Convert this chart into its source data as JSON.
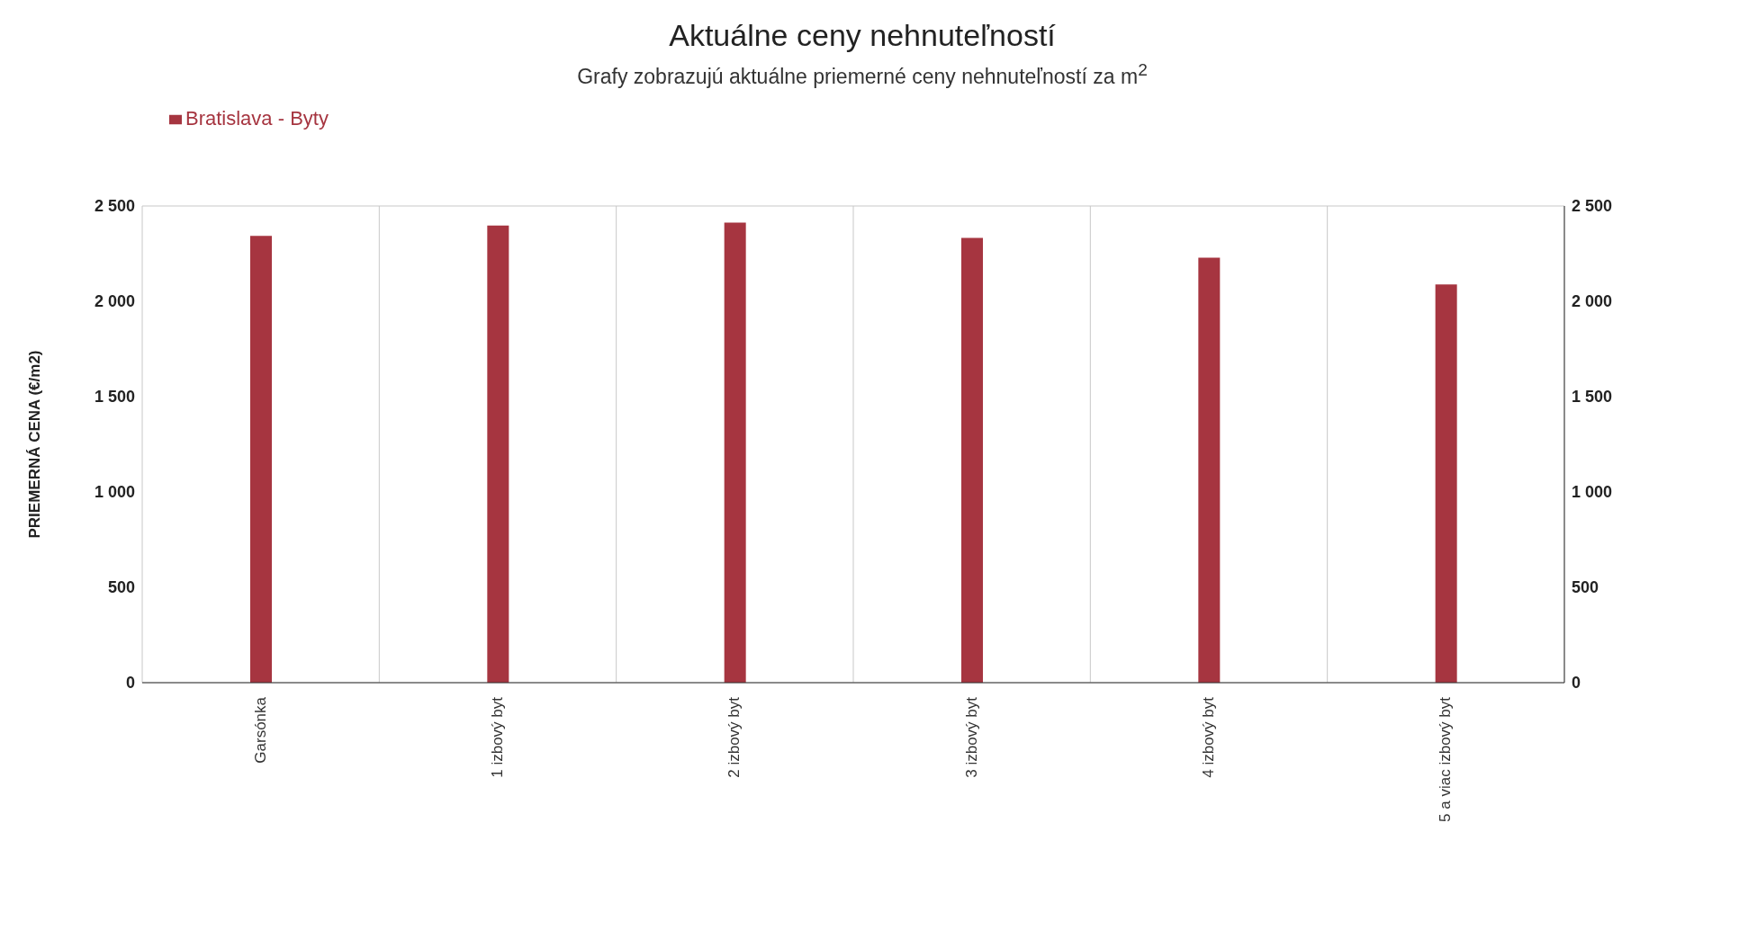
{
  "chart_data": {
    "type": "bar",
    "title": "Aktuálne ceny nehnuteľností",
    "subtitle": "Grafy zobrazujú aktuálne priemerné ceny nehnuteľností za m$^{2}$",
    "ylabel": "PRIEMERNÁ CENA (€/m2)",
    "categories": [
      "Garsónka",
      "1 izbový byt",
      "2 izbový byt",
      "3 izbový byt",
      "4 izbový byt",
      "5 a viac izbový byt"
    ],
    "series": [
      {
        "name": "Bratislava - Byty",
        "color": "#a63540",
        "values": [
          2343,
          2397,
          2413,
          2332,
          2229,
          2089
        ]
      }
    ],
    "ylim": [
      0,
      2500
    ],
    "yticks": [
      0,
      {
        "value": 500,
        "label": "500"
      },
      {
        "value": 1000,
        "label": "1 000"
      },
      {
        "value": 1500,
        "label": "1 500"
      },
      {
        "value": 2000,
        "label": "2 000"
      },
      {
        "value": 2500,
        "label": "2 500"
      }
    ],
    "y2lim": [
      0,
      2500
    ],
    "y2ticks": [
      0,
      {
        "value": 500,
        "label": "500"
      },
      {
        "value": 1000,
        "label": "1 000"
      },
      {
        "value": 1500,
        "label": "1 500"
      },
      {
        "value": 2000,
        "label": "2 000"
      },
      {
        "value": 2500,
        "label": "2 500"
      }
    ],
    "grid": true,
    "legend": "top left"
  }
}
